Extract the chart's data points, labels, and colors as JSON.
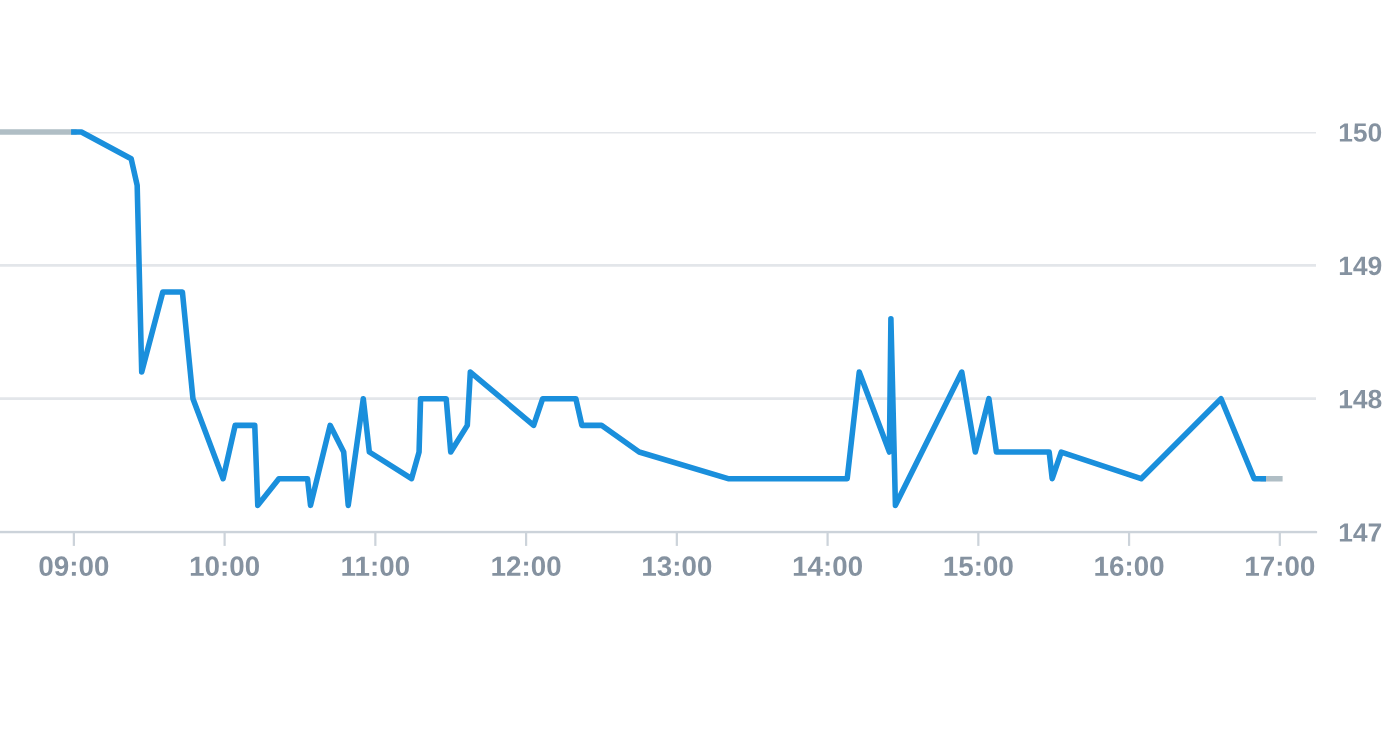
{
  "chart_data": {
    "type": "line",
    "xlim": [
      8.51,
      17.24
    ],
    "ylim": [
      147,
      150
    ],
    "xticks": [
      {
        "value": 9,
        "label": "09:00"
      },
      {
        "value": 10,
        "label": "10:00"
      },
      {
        "value": 11,
        "label": "11:00"
      },
      {
        "value": 12,
        "label": "12:00"
      },
      {
        "value": 13,
        "label": "13:00"
      },
      {
        "value": 14,
        "label": "14:00"
      },
      {
        "value": 15,
        "label": "15:00"
      },
      {
        "value": 16,
        "label": "16:00"
      },
      {
        "value": 17,
        "label": "17:00"
      }
    ],
    "yticks": [
      147,
      148,
      149,
      150
    ],
    "grid": "y",
    "legend": false,
    "marker": "none",
    "line_style": "solid",
    "series": [
      {
        "color": "#b0bec5",
        "x": [
          8.51,
          9.0,
          9.01,
          16.89,
          17.0
        ],
        "values": [
          150,
          150,
          null,
          147.4,
          147.4
        ]
      },
      {
        "color": "#1a8fdc",
        "x": [
          9.0,
          9.05,
          9.38,
          9.42,
          9.45,
          9.59,
          9.72,
          9.79,
          9.99,
          10.07,
          10.2,
          10.22,
          10.36,
          10.55,
          10.57,
          10.7,
          10.79,
          10.82,
          10.92,
          10.96,
          11.24,
          11.29,
          11.3,
          11.47,
          11.5,
          11.61,
          11.63,
          12.05,
          12.11,
          12.33,
          12.37,
          12.5,
          12.75,
          13.34,
          14.13,
          14.21,
          14.41,
          14.42,
          14.45,
          14.89,
          14.98,
          15.07,
          15.12,
          15.47,
          15.49,
          15.55,
          16.08,
          16.61,
          16.83,
          16.89
        ],
        "values": [
          150,
          150,
          149.8,
          149.6,
          148.2,
          148.8,
          148.8,
          148.0,
          147.4,
          147.8,
          147.8,
          147.2,
          147.4,
          147.4,
          147.2,
          147.8,
          147.6,
          147.2,
          148.0,
          147.6,
          147.4,
          147.6,
          148.0,
          148.0,
          147.6,
          147.8,
          148.2,
          147.8,
          148.0,
          148.0,
          147.8,
          147.8,
          147.6,
          147.4,
          147.4,
          148.2,
          147.6,
          148.6,
          147.2,
          148.2,
          147.6,
          148.0,
          147.6,
          147.6,
          147.4,
          147.6,
          147.4,
          148.0,
          147.4,
          147.4
        ]
      }
    ]
  }
}
